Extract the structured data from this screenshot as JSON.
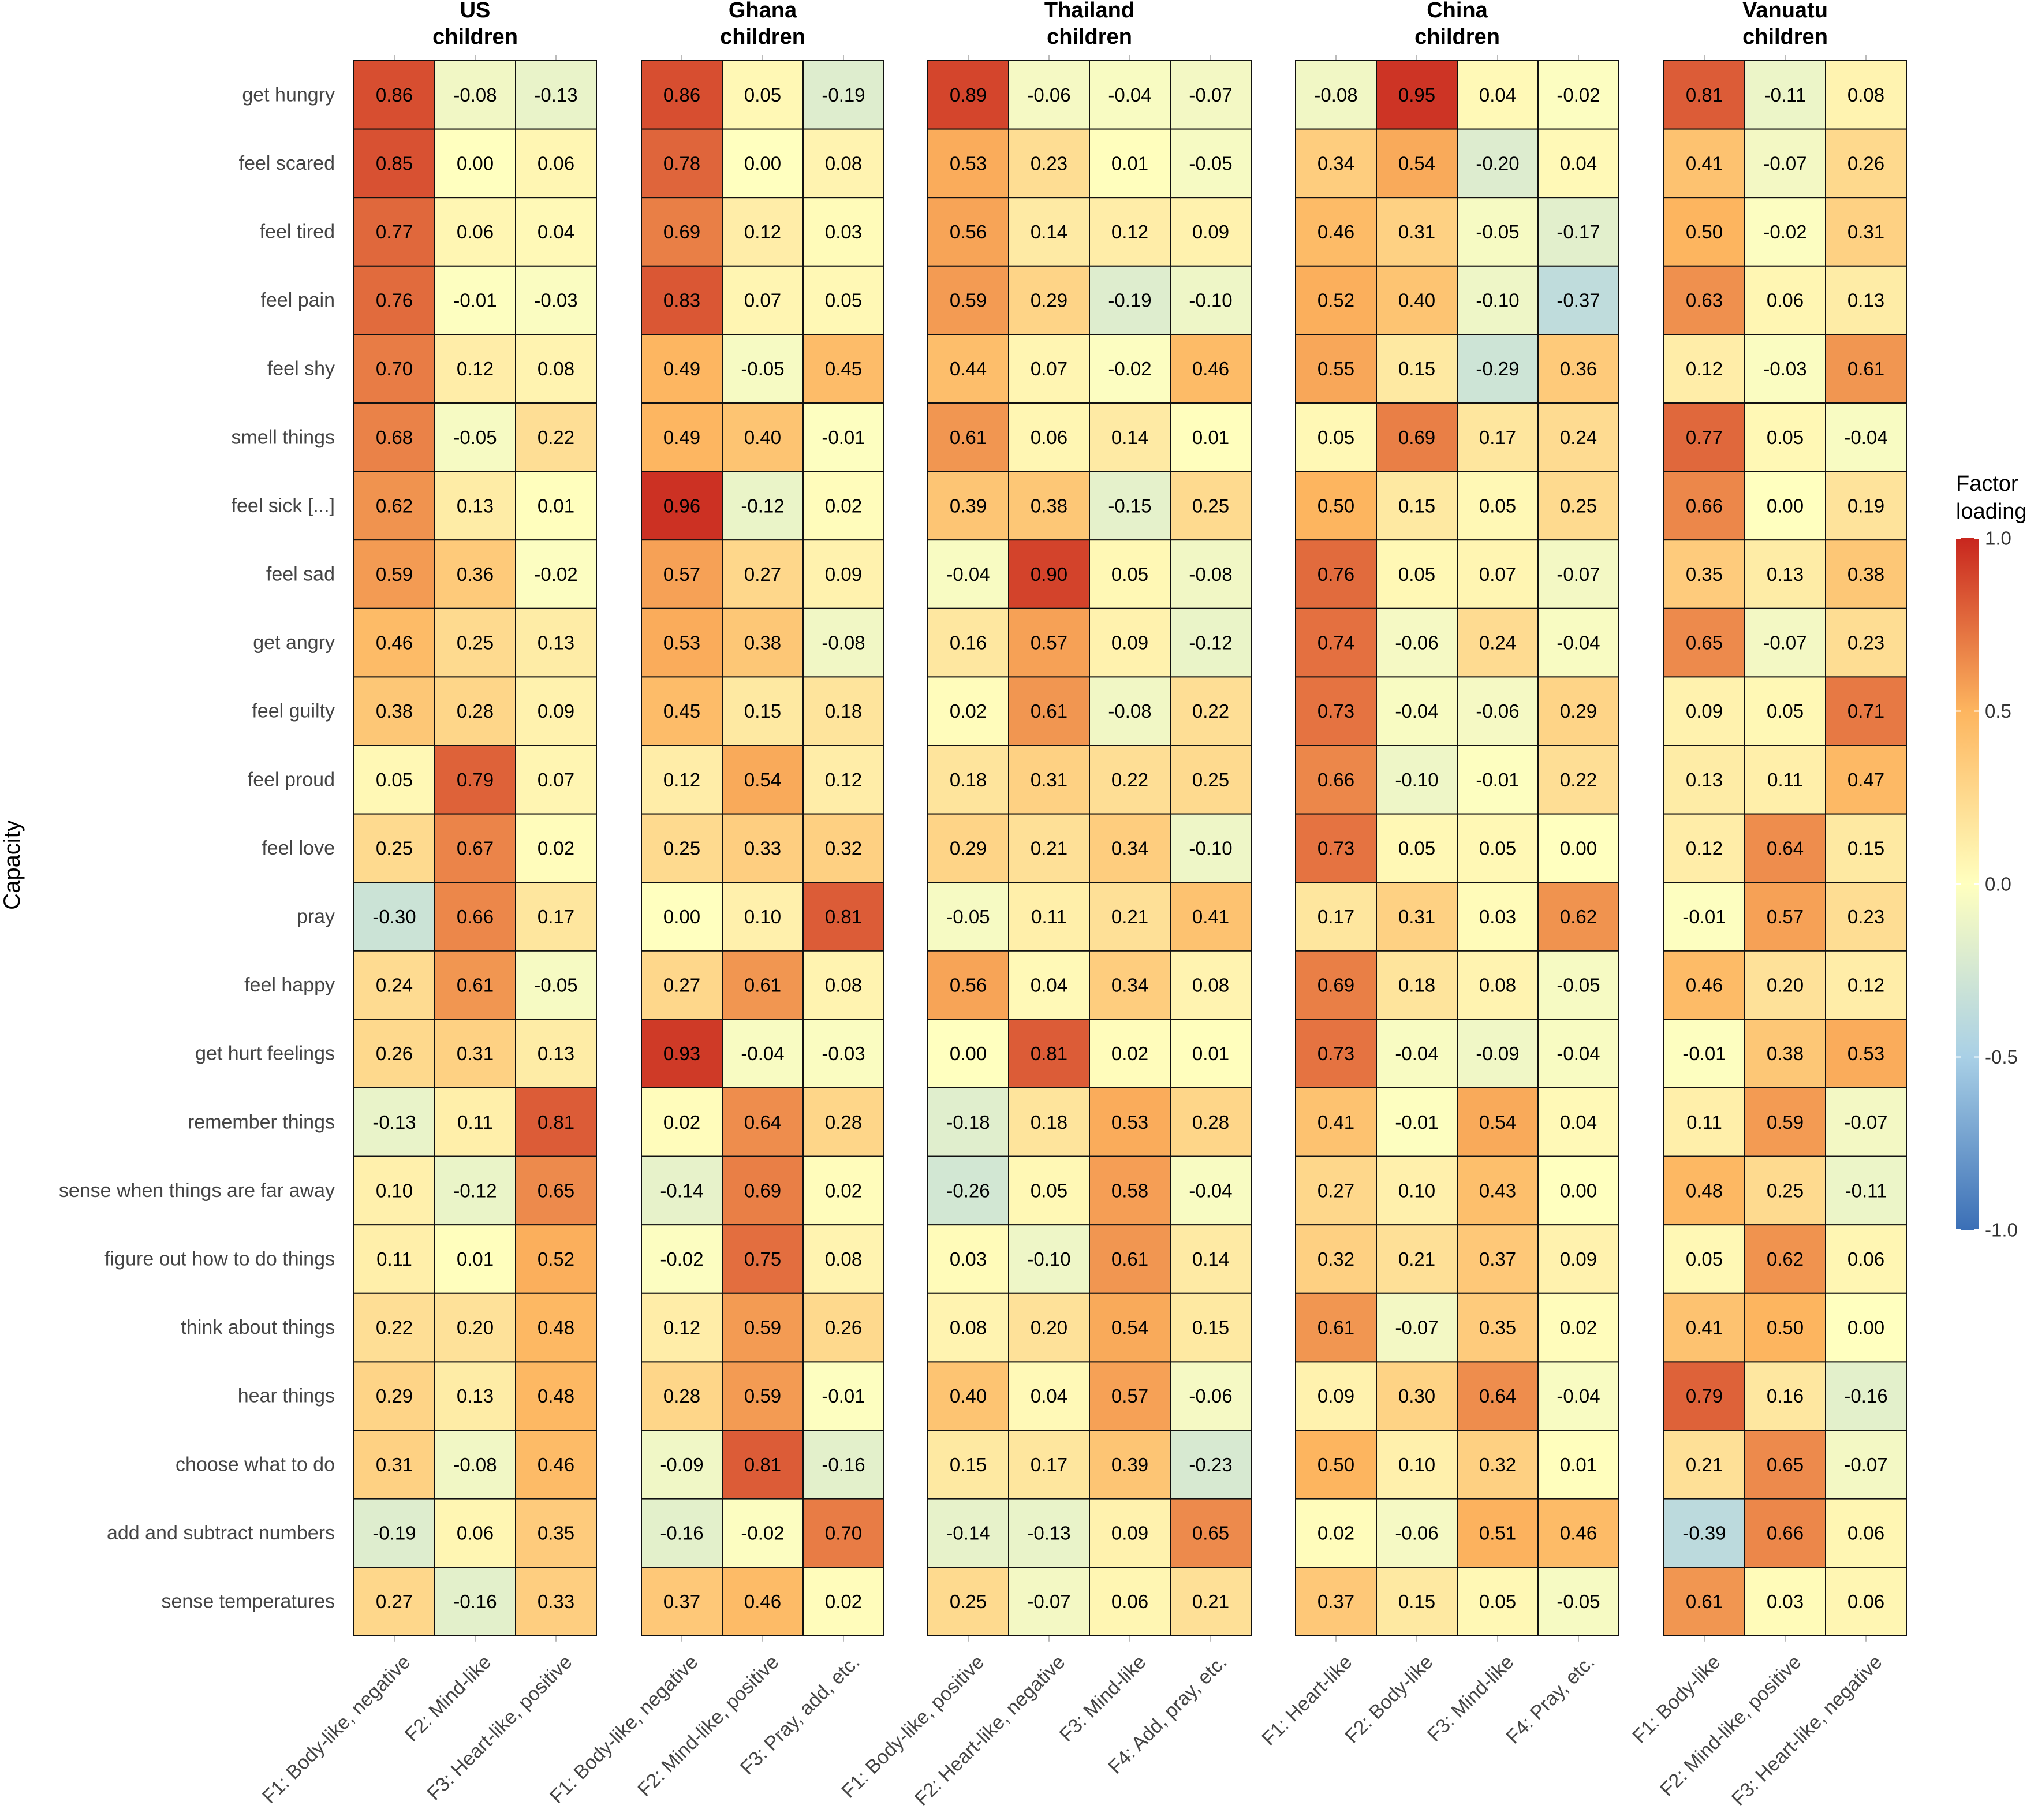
{
  "chart_data": {
    "type": "heatmap",
    "ylabel": "Capacity",
    "legend": {
      "title_lines": [
        "Factor",
        "loading"
      ],
      "min": -1.0,
      "max": 1.0,
      "ticks": [
        {
          "value": 1.0,
          "label": "1.0"
        },
        {
          "value": 0.5,
          "label": "0.5"
        },
        {
          "value": 0.0,
          "label": "0.0"
        },
        {
          "value": -0.5,
          "label": "-0.5"
        },
        {
          "value": -1.0,
          "label": "-1.0"
        }
      ],
      "placement": "right",
      "colors": {
        "low": "#3b6fb6",
        "mid": "#ffffbf",
        "high": "#c8261e"
      }
    },
    "rows": [
      "get hungry",
      "feel scared",
      "feel tired",
      "feel pain",
      "feel shy",
      "smell things",
      "feel sick [...]",
      "feel sad",
      "get angry",
      "feel guilty",
      "feel proud",
      "feel love",
      "pray",
      "feel happy",
      "get hurt feelings",
      "remember things",
      "sense when things are far away",
      "figure out how to do things",
      "think about things",
      "hear things",
      "choose what to do",
      "add and subtract numbers",
      "sense temperatures"
    ],
    "panels": [
      {
        "title_lines": [
          "US",
          "children"
        ],
        "columns": [
          "F1: Body-like, negative",
          "F2: Mind-like",
          "F3: Heart-like, positive"
        ],
        "values": [
          [
            "0.86",
            "-0.08",
            "-0.13"
          ],
          [
            "0.85",
            "0.00",
            "0.06"
          ],
          [
            "0.77",
            "0.06",
            "0.04"
          ],
          [
            "0.76",
            "-0.01",
            "-0.03"
          ],
          [
            "0.70",
            "0.12",
            "0.08"
          ],
          [
            "0.68",
            "-0.05",
            "0.22"
          ],
          [
            "0.62",
            "0.13",
            "0.01"
          ],
          [
            "0.59",
            "0.36",
            "-0.02"
          ],
          [
            "0.46",
            "0.25",
            "0.13"
          ],
          [
            "0.38",
            "0.28",
            "0.09"
          ],
          [
            "0.05",
            "0.79",
            "0.07"
          ],
          [
            "0.25",
            "0.67",
            "0.02"
          ],
          [
            "-0.30",
            "0.66",
            "0.17"
          ],
          [
            "0.24",
            "0.61",
            "-0.05"
          ],
          [
            "0.26",
            "0.31",
            "0.13"
          ],
          [
            "-0.13",
            "0.11",
            "0.81"
          ],
          [
            "0.10",
            "-0.12",
            "0.65"
          ],
          [
            "0.11",
            "0.01",
            "0.52"
          ],
          [
            "0.22",
            "0.20",
            "0.48"
          ],
          [
            "0.29",
            "0.13",
            "0.48"
          ],
          [
            "0.31",
            "-0.08",
            "0.46"
          ],
          [
            "-0.19",
            "0.06",
            "0.35"
          ],
          [
            "0.27",
            "-0.16",
            "0.33"
          ]
        ]
      },
      {
        "title_lines": [
          "Ghana",
          "children"
        ],
        "columns": [
          "F1: Body-like, negative",
          "F2: Mind-like, positive",
          "F3: Pray, add, etc."
        ],
        "values": [
          [
            "0.86",
            "0.05",
            "-0.19"
          ],
          [
            "0.78",
            "0.00",
            "0.08"
          ],
          [
            "0.69",
            "0.12",
            "0.03"
          ],
          [
            "0.83",
            "0.07",
            "0.05"
          ],
          [
            "0.49",
            "-0.05",
            "0.45"
          ],
          [
            "0.49",
            "0.40",
            "-0.01"
          ],
          [
            "0.96",
            "-0.12",
            "0.02"
          ],
          [
            "0.57",
            "0.27",
            "0.09"
          ],
          [
            "0.53",
            "0.38",
            "-0.08"
          ],
          [
            "0.45",
            "0.15",
            "0.18"
          ],
          [
            "0.12",
            "0.54",
            "0.12"
          ],
          [
            "0.25",
            "0.33",
            "0.32"
          ],
          [
            "0.00",
            "0.10",
            "0.81"
          ],
          [
            "0.27",
            "0.61",
            "0.08"
          ],
          [
            "0.93",
            "-0.04",
            "-0.03"
          ],
          [
            "0.02",
            "0.64",
            "0.28"
          ],
          [
            "-0.14",
            "0.69",
            "0.02"
          ],
          [
            "-0.02",
            "0.75",
            "0.08"
          ],
          [
            "0.12",
            "0.59",
            "0.26"
          ],
          [
            "0.28",
            "0.59",
            "-0.01"
          ],
          [
            "-0.09",
            "0.81",
            "-0.16"
          ],
          [
            "-0.16",
            "-0.02",
            "0.70"
          ],
          [
            "0.37",
            "0.46",
            "0.02"
          ]
        ]
      },
      {
        "title_lines": [
          "Thailand",
          "children"
        ],
        "columns": [
          "F1: Body-like, positive",
          "F2: Heart-like, negative",
          "F3: Mind-like",
          "F4: Add, pray, etc."
        ],
        "values": [
          [
            "0.89",
            "-0.06",
            "-0.04",
            "-0.07"
          ],
          [
            "0.53",
            "0.23",
            "0.01",
            "-0.05"
          ],
          [
            "0.56",
            "0.14",
            "0.12",
            "0.09"
          ],
          [
            "0.59",
            "0.29",
            "-0.19",
            "-0.10"
          ],
          [
            "0.44",
            "0.07",
            "-0.02",
            "0.46"
          ],
          [
            "0.61",
            "0.06",
            "0.14",
            "0.01"
          ],
          [
            "0.39",
            "0.38",
            "-0.15",
            "0.25"
          ],
          [
            "-0.04",
            "0.90",
            "0.05",
            "-0.08"
          ],
          [
            "0.16",
            "0.57",
            "0.09",
            "-0.12"
          ],
          [
            "0.02",
            "0.61",
            "-0.08",
            "0.22"
          ],
          [
            "0.18",
            "0.31",
            "0.22",
            "0.25"
          ],
          [
            "0.29",
            "0.21",
            "0.34",
            "-0.10"
          ],
          [
            "-0.05",
            "0.11",
            "0.21",
            "0.41"
          ],
          [
            "0.56",
            "0.04",
            "0.34",
            "0.08"
          ],
          [
            "0.00",
            "0.81",
            "0.02",
            "0.01"
          ],
          [
            "-0.18",
            "0.18",
            "0.53",
            "0.28"
          ],
          [
            "-0.26",
            "0.05",
            "0.58",
            "-0.04"
          ],
          [
            "0.03",
            "-0.10",
            "0.61",
            "0.14"
          ],
          [
            "0.08",
            "0.20",
            "0.54",
            "0.15"
          ],
          [
            "0.40",
            "0.04",
            "0.57",
            "-0.06"
          ],
          [
            "0.15",
            "0.17",
            "0.39",
            "-0.23"
          ],
          [
            "-0.14",
            "-0.13",
            "0.09",
            "0.65"
          ],
          [
            "0.25",
            "-0.07",
            "0.06",
            "0.21"
          ]
        ]
      },
      {
        "title_lines": [
          "China",
          "children"
        ],
        "columns": [
          "F1: Heart-like",
          "F2: Body-like",
          "F3: Mind-like",
          "F4: Pray, etc."
        ],
        "values": [
          [
            "-0.08",
            "0.95",
            "0.04",
            "-0.02"
          ],
          [
            "0.34",
            "0.54",
            "-0.20",
            "0.04"
          ],
          [
            "0.46",
            "0.31",
            "-0.05",
            "-0.17"
          ],
          [
            "0.52",
            "0.40",
            "-0.10",
            "-0.37"
          ],
          [
            "0.55",
            "0.15",
            "-0.29",
            "0.36"
          ],
          [
            "0.05",
            "0.69",
            "0.17",
            "0.24"
          ],
          [
            "0.50",
            "0.15",
            "0.05",
            "0.25"
          ],
          [
            "0.76",
            "0.05",
            "0.07",
            "-0.07"
          ],
          [
            "0.74",
            "-0.06",
            "0.24",
            "-0.04"
          ],
          [
            "0.73",
            "-0.04",
            "-0.06",
            "0.29"
          ],
          [
            "0.66",
            "-0.10",
            "-0.01",
            "0.22"
          ],
          [
            "0.73",
            "0.05",
            "0.05",
            "0.00"
          ],
          [
            "0.17",
            "0.31",
            "0.03",
            "0.62"
          ],
          [
            "0.69",
            "0.18",
            "0.08",
            "-0.05"
          ],
          [
            "0.73",
            "-0.04",
            "-0.09",
            "-0.04"
          ],
          [
            "0.41",
            "-0.01",
            "0.54",
            "0.04"
          ],
          [
            "0.27",
            "0.10",
            "0.43",
            "0.00"
          ],
          [
            "0.32",
            "0.21",
            "0.37",
            "0.09"
          ],
          [
            "0.61",
            "-0.07",
            "0.35",
            "0.02"
          ],
          [
            "0.09",
            "0.30",
            "0.64",
            "-0.04"
          ],
          [
            "0.50",
            "0.10",
            "0.32",
            "0.01"
          ],
          [
            "0.02",
            "-0.06",
            "0.51",
            "0.46"
          ],
          [
            "0.37",
            "0.15",
            "0.05",
            "-0.05"
          ]
        ]
      },
      {
        "title_lines": [
          "Vanuatu",
          "children"
        ],
        "columns": [
          "F1: Body-like",
          "F2: Mind-like, positive",
          "F3: Heart-like, negative"
        ],
        "values": [
          [
            "0.81",
            "-0.11",
            "0.08"
          ],
          [
            "0.41",
            "-0.07",
            "0.26"
          ],
          [
            "0.50",
            "-0.02",
            "0.31"
          ],
          [
            "0.63",
            "0.06",
            "0.13"
          ],
          [
            "0.12",
            "-0.03",
            "0.61"
          ],
          [
            "0.77",
            "0.05",
            "-0.04"
          ],
          [
            "0.66",
            "0.00",
            "0.19"
          ],
          [
            "0.35",
            "0.13",
            "0.38"
          ],
          [
            "0.65",
            "-0.07",
            "0.23"
          ],
          [
            "0.09",
            "0.05",
            "0.71"
          ],
          [
            "0.13",
            "0.11",
            "0.47"
          ],
          [
            "0.12",
            "0.64",
            "0.15"
          ],
          [
            "-0.01",
            "0.57",
            "0.23"
          ],
          [
            "0.46",
            "0.20",
            "0.12"
          ],
          [
            "-0.01",
            "0.38",
            "0.53"
          ],
          [
            "0.11",
            "0.59",
            "-0.07"
          ],
          [
            "0.48",
            "0.25",
            "-0.11"
          ],
          [
            "0.05",
            "0.62",
            "0.06"
          ],
          [
            "0.41",
            "0.50",
            "0.00"
          ],
          [
            "0.79",
            "0.16",
            "-0.16"
          ],
          [
            "0.21",
            "0.65",
            "-0.07"
          ],
          [
            "-0.39",
            "0.66",
            "0.06"
          ],
          [
            "0.61",
            "0.03",
            "0.06"
          ]
        ]
      }
    ]
  }
}
